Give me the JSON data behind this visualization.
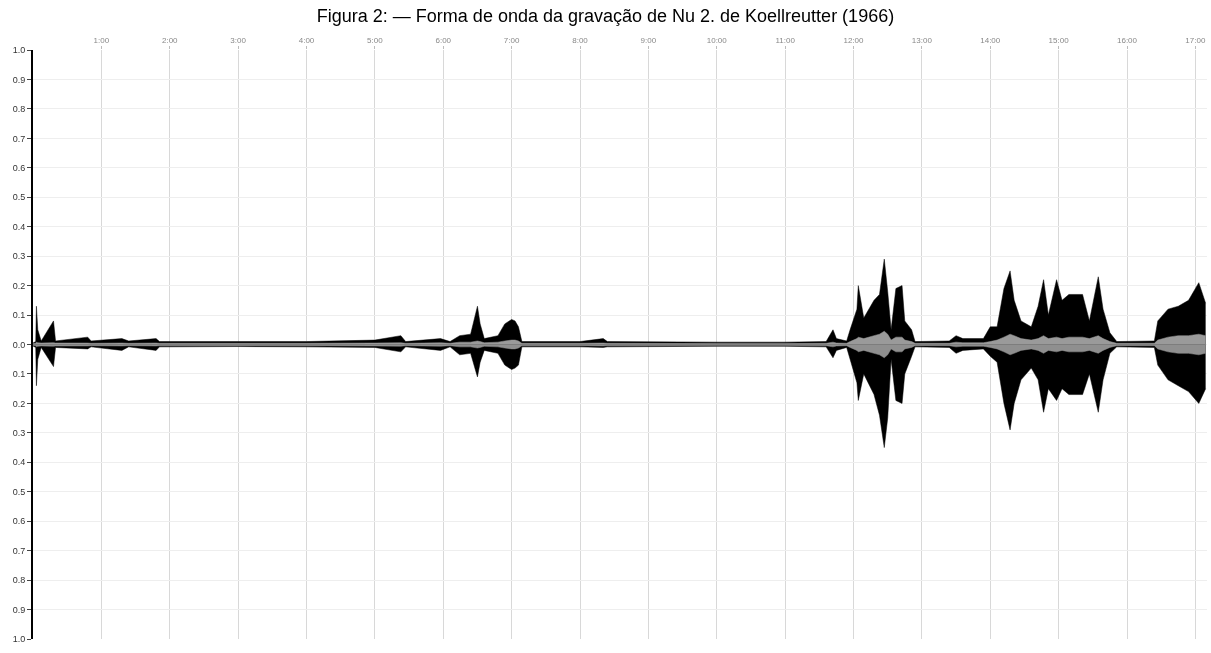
{
  "chart_data": {
    "type": "area",
    "title": "Figura 2: — Forma de onda da gravação de Nu 2. de Koellreutter (1966)",
    "x": [
      0,
      0.04,
      0.05,
      0.07,
      0.12,
      0.3,
      0.33,
      0.8,
      0.85,
      1.3,
      1.4,
      1.8,
      1.85,
      3.0,
      4.0,
      5.0,
      5.38,
      5.45,
      5.96,
      6.1,
      6.24,
      6.4,
      6.5,
      6.54,
      6.6,
      6.8,
      6.9,
      7.0,
      7.05,
      7.1,
      7.15,
      8.0,
      8.34,
      8.4,
      10.0,
      11.0,
      11.6,
      11.7,
      11.75,
      11.9,
      11.95,
      12.05,
      12.07,
      12.15,
      12.3,
      12.38,
      12.45,
      12.5,
      12.55,
      12.62,
      12.71,
      12.75,
      12.85,
      12.9,
      13.4,
      13.5,
      13.6,
      13.9,
      14.0,
      14.1,
      14.2,
      14.29,
      14.35,
      14.45,
      14.6,
      14.7,
      14.78,
      14.85,
      14.97,
      15.05,
      15.15,
      15.35,
      15.45,
      15.58,
      15.65,
      15.75,
      15.85,
      16.4,
      16.45,
      16.6,
      16.75,
      16.9,
      17.05,
      17.15
    ],
    "series": [
      {
        "color": "#000000",
        "values": [
          0.005,
          0.01,
          0.13,
          0.05,
          0.012,
          0.08,
          0.012,
          0.025,
          0.012,
          0.02,
          0.012,
          0.02,
          0.01,
          0.01,
          0.01,
          0.015,
          0.03,
          0.01,
          0.02,
          0.01,
          0.03,
          0.035,
          0.13,
          0.07,
          0.02,
          0.03,
          0.07,
          0.085,
          0.08,
          0.06,
          0.01,
          0.01,
          0.02,
          0.01,
          0.008,
          0.008,
          0.01,
          0.05,
          0.02,
          0.012,
          0.05,
          0.12,
          0.2,
          0.09,
          0.15,
          0.17,
          0.29,
          0.18,
          0.05,
          0.19,
          0.2,
          0.08,
          0.05,
          0.01,
          0.012,
          0.03,
          0.02,
          0.02,
          0.06,
          0.06,
          0.19,
          0.25,
          0.15,
          0.08,
          0.06,
          0.13,
          0.22,
          0.1,
          0.22,
          0.15,
          0.17,
          0.17,
          0.08,
          0.23,
          0.12,
          0.04,
          0.01,
          0.012,
          0.08,
          0.12,
          0.13,
          0.15,
          0.21,
          0.14
        ]
      },
      {
        "color": "#000000",
        "values": [
          -0.005,
          -0.01,
          -0.14,
          -0.05,
          -0.01,
          -0.075,
          -0.01,
          -0.015,
          -0.008,
          -0.02,
          -0.008,
          -0.02,
          -0.008,
          -0.007,
          -0.008,
          -0.01,
          -0.025,
          -0.008,
          -0.02,
          -0.008,
          -0.035,
          -0.03,
          -0.11,
          -0.06,
          -0.02,
          -0.03,
          -0.07,
          -0.085,
          -0.08,
          -0.07,
          -0.008,
          -0.008,
          -0.01,
          -0.008,
          -0.006,
          -0.006,
          -0.008,
          -0.045,
          -0.02,
          -0.01,
          -0.05,
          -0.13,
          -0.19,
          -0.1,
          -0.17,
          -0.24,
          -0.35,
          -0.25,
          -0.05,
          -0.19,
          -0.2,
          -0.1,
          -0.04,
          -0.008,
          -0.01,
          -0.03,
          -0.02,
          -0.015,
          -0.04,
          -0.06,
          -0.2,
          -0.29,
          -0.2,
          -0.12,
          -0.08,
          -0.12,
          -0.23,
          -0.15,
          -0.19,
          -0.15,
          -0.17,
          -0.17,
          -0.1,
          -0.23,
          -0.12,
          -0.03,
          -0.008,
          -0.01,
          -0.07,
          -0.12,
          -0.14,
          -0.16,
          -0.2,
          -0.15
        ]
      },
      {
        "color": "#9a9a9a",
        "values": [
          0.003,
          0.004,
          0.008,
          0.006,
          0.005,
          0.006,
          0.005,
          0.005,
          0.004,
          0.005,
          0.004,
          0.005,
          0.004,
          0.004,
          0.004,
          0.005,
          0.006,
          0.004,
          0.006,
          0.004,
          0.008,
          0.008,
          0.012,
          0.01,
          0.006,
          0.008,
          0.012,
          0.015,
          0.015,
          0.012,
          0.004,
          0.004,
          0.005,
          0.004,
          0.003,
          0.003,
          0.004,
          0.008,
          0.005,
          0.004,
          0.01,
          0.02,
          0.025,
          0.02,
          0.03,
          0.035,
          0.045,
          0.035,
          0.015,
          0.025,
          0.025,
          0.015,
          0.01,
          0.004,
          0.004,
          0.008,
          0.006,
          0.006,
          0.01,
          0.015,
          0.025,
          0.035,
          0.03,
          0.02,
          0.015,
          0.02,
          0.03,
          0.02,
          0.025,
          0.02,
          0.025,
          0.025,
          0.02,
          0.03,
          0.02,
          0.01,
          0.004,
          0.004,
          0.015,
          0.025,
          0.03,
          0.03,
          0.035,
          0.03
        ]
      },
      {
        "color": "#8f8f8f",
        "values": [
          -0.003,
          -0.004,
          -0.008,
          -0.006,
          -0.005,
          -0.006,
          -0.005,
          -0.005,
          -0.004,
          -0.005,
          -0.004,
          -0.005,
          -0.004,
          -0.004,
          -0.004,
          -0.005,
          -0.006,
          -0.004,
          -0.006,
          -0.004,
          -0.008,
          -0.008,
          -0.012,
          -0.01,
          -0.006,
          -0.008,
          -0.012,
          -0.015,
          -0.015,
          -0.012,
          -0.004,
          -0.004,
          -0.005,
          -0.004,
          -0.003,
          -0.003,
          -0.004,
          -0.008,
          -0.005,
          -0.004,
          -0.01,
          -0.02,
          -0.025,
          -0.02,
          -0.03,
          -0.035,
          -0.045,
          -0.035,
          -0.015,
          -0.025,
          -0.025,
          -0.015,
          -0.01,
          -0.004,
          -0.004,
          -0.008,
          -0.006,
          -0.006,
          -0.01,
          -0.015,
          -0.025,
          -0.035,
          -0.03,
          -0.02,
          -0.015,
          -0.02,
          -0.03,
          -0.02,
          -0.025,
          -0.02,
          -0.025,
          -0.025,
          -0.02,
          -0.03,
          -0.02,
          -0.01,
          -0.004,
          -0.004,
          -0.015,
          -0.025,
          -0.03,
          -0.03,
          -0.035,
          -0.03
        ]
      }
    ],
    "xlim": [
      0,
      17.17
    ],
    "xticks": [
      {
        "value": 1,
        "label": "1:00"
      },
      {
        "value": 2,
        "label": "2:00"
      },
      {
        "value": 3,
        "label": "3:00"
      },
      {
        "value": 4,
        "label": "4:00"
      },
      {
        "value": 5,
        "label": "5:00"
      },
      {
        "value": 6,
        "label": "6:00"
      },
      {
        "value": 7,
        "label": "7:00"
      },
      {
        "value": 8,
        "label": "8:00"
      },
      {
        "value": 9,
        "label": "9:00"
      },
      {
        "value": 10,
        "label": "10:00"
      },
      {
        "value": 11,
        "label": "11:00"
      },
      {
        "value": 12,
        "label": "12:00"
      },
      {
        "value": 13,
        "label": "13:00"
      },
      {
        "value": 14,
        "label": "14:00"
      },
      {
        "value": 15,
        "label": "15:00"
      },
      {
        "value": 16,
        "label": "16:00"
      },
      {
        "value": 17,
        "label": "17:00"
      }
    ],
    "ylim": [
      -1,
      1
    ],
    "yticks": [
      {
        "value": 1,
        "label": "1.0"
      },
      {
        "value": 0.9,
        "label": "0.9"
      },
      {
        "value": 0.8,
        "label": "0.8"
      },
      {
        "value": 0.7,
        "label": "0.7"
      },
      {
        "value": 0.6,
        "label": "0.6"
      },
      {
        "value": 0.5,
        "label": "0.5"
      },
      {
        "value": 0.4,
        "label": "0.4"
      },
      {
        "value": 0.3,
        "label": "0.3"
      },
      {
        "value": 0.2,
        "label": "0.2"
      },
      {
        "value": 0.1,
        "label": "0.1"
      },
      {
        "value": 0,
        "label": "0.0"
      },
      {
        "value": -0.1,
        "label": "0.1"
      },
      {
        "value": -0.2,
        "label": "0.2"
      },
      {
        "value": -0.3,
        "label": "0.3"
      },
      {
        "value": -0.4,
        "label": "0.4"
      },
      {
        "value": -0.5,
        "label": "0.5"
      },
      {
        "value": -0.6,
        "label": "0.6"
      },
      {
        "value": -0.7,
        "label": "0.7"
      },
      {
        "value": -0.8,
        "label": "0.8"
      },
      {
        "value": -0.9,
        "label": "0.9"
      },
      {
        "value": -1,
        "label": "1.0"
      }
    ],
    "grid": true
  }
}
